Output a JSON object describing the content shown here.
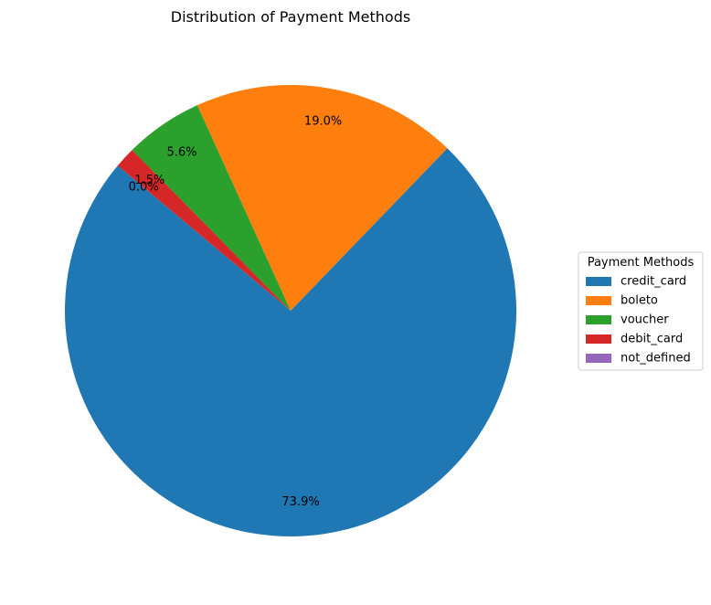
{
  "chart_data": {
    "type": "pie",
    "title": "Distribution of Payment Methods",
    "legend": {
      "title": "Payment Methods",
      "placement": "right"
    },
    "start_angle_deg": 140,
    "direction": "counterclockwise",
    "slices": [
      {
        "label": "credit_card",
        "value": 73.9,
        "display": "73.9%",
        "color": "#1f77b4"
      },
      {
        "label": "boleto",
        "value": 19.0,
        "display": "19.0%",
        "color": "#ff7f0e"
      },
      {
        "label": "voucher",
        "value": 5.6,
        "display": "5.6%",
        "color": "#2ca02c"
      },
      {
        "label": "debit_card",
        "value": 1.5,
        "display": "1.5%",
        "color": "#d62728"
      },
      {
        "label": "not_defined",
        "value": 0.0,
        "display": "0.0%",
        "color": "#9467bd"
      }
    ]
  }
}
